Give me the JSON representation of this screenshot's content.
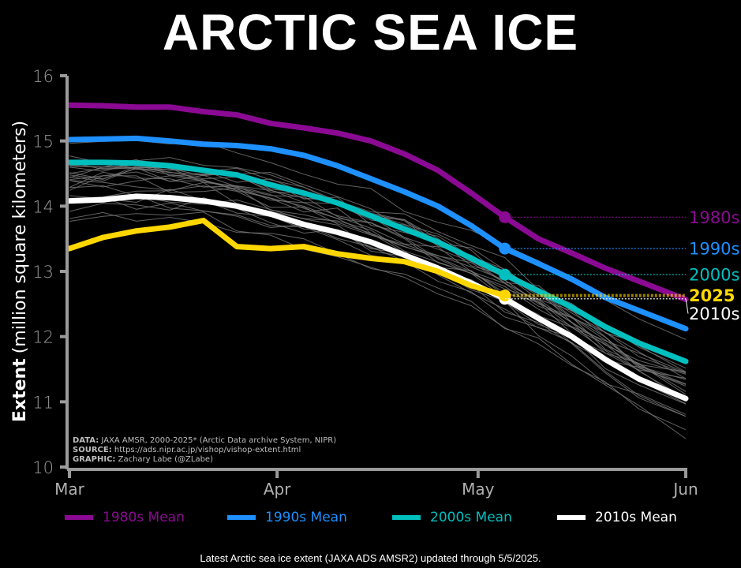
{
  "title": "ARCTIC SEA ICE",
  "footer": "Latest Arctic sea ice extent (JAXA ADS AMSR2) updated through 5/5/2025.",
  "credits": {
    "data_label": "DATA:",
    "data_text": "JAXA AMSR, 2000-2025* (Arctic Data archive System, NIPR)",
    "source_label": "SOURCE:",
    "source_text": "https://ads.nipr.ac.jp/vishop/vishop-extent.html",
    "graphic_label": "GRAPHIC:",
    "graphic_text": "Zachary Labe (@ZLabe)"
  },
  "colors": {
    "background": "#000000",
    "1980s": "#8B0A93",
    "1990s": "#1E90FF",
    "2000s": "#00BFBF",
    "2010s": "#FFFFFF",
    "2025": "#FFD700",
    "axis": "#9a9a9a",
    "years": "#8c8c8c"
  },
  "legend": [
    {
      "label": "1980s Mean",
      "key": "1980s"
    },
    {
      "label": "1990s Mean",
      "key": "1990s"
    },
    {
      "label": "2000s Mean",
      "key": "2000s"
    },
    {
      "label": "2010s Mean",
      "key": "2010s"
    }
  ],
  "chart_data": {
    "type": "line",
    "title": "ARCTIC SEA ICE",
    "xlabel": "",
    "ylabel_bold": "Extent",
    "ylabel_rest": "(million square kilometers)",
    "ylim": [
      10,
      16
    ],
    "xlim_days": [
      0,
      92
    ],
    "yticks": [
      10,
      11,
      12,
      13,
      14,
      15,
      16
    ],
    "xticks": [
      {
        "label": "Mar",
        "day": 0
      },
      {
        "label": "Apr",
        "day": 31
      },
      {
        "label": "May",
        "day": 61
      },
      {
        "label": "Jun",
        "day": 92
      }
    ],
    "grid": false,
    "legend_position": "bottom",
    "latest_day": 65,
    "x_days": [
      0,
      5,
      10,
      15,
      20,
      25,
      30,
      35,
      40,
      45,
      50,
      55,
      60,
      65,
      70,
      75,
      80,
      85,
      92
    ],
    "series": [
      {
        "name": "1980s",
        "legend": "1980s Mean",
        "end_label": "1980s",
        "values": [
          15.55,
          15.54,
          15.52,
          15.52,
          15.45,
          15.4,
          15.27,
          15.2,
          15.12,
          15.0,
          14.8,
          14.55,
          14.2,
          13.83,
          13.5,
          13.28,
          13.05,
          12.85,
          12.57
        ],
        "marker_value": 13.83
      },
      {
        "name": "1990s",
        "legend": "1990s Mean",
        "end_label": "1990s",
        "values": [
          15.02,
          15.03,
          15.04,
          15.0,
          14.95,
          14.93,
          14.88,
          14.78,
          14.62,
          14.42,
          14.22,
          14.0,
          13.7,
          13.35,
          13.12,
          12.88,
          12.6,
          12.4,
          12.12
        ],
        "marker_value": 13.35
      },
      {
        "name": "2000s",
        "legend": "2000s Mean",
        "end_label": "2000s",
        "values": [
          14.67,
          14.67,
          14.66,
          14.62,
          14.55,
          14.48,
          14.33,
          14.2,
          14.05,
          13.85,
          13.65,
          13.45,
          13.2,
          12.95,
          12.7,
          12.45,
          12.15,
          11.9,
          11.62
        ],
        "marker_value": 12.95
      },
      {
        "name": "2010s",
        "legend": "2010s Mean",
        "end_label": "2010s",
        "values": [
          14.08,
          14.1,
          14.15,
          14.13,
          14.08,
          14.0,
          13.88,
          13.72,
          13.6,
          13.45,
          13.25,
          13.05,
          12.82,
          12.58,
          12.28,
          12.0,
          11.65,
          11.35,
          11.05
        ],
        "marker_value": 12.58
      },
      {
        "name": "2025",
        "legend": "",
        "end_label": "2025",
        "values": [
          13.35,
          13.52,
          13.62,
          13.68,
          13.78,
          13.38,
          13.35,
          13.38,
          13.27,
          13.2,
          13.15,
          13.0,
          12.78,
          12.63
        ],
        "marker_value": 12.63
      }
    ],
    "individual_years_note": "thin gray lines for individual years 2000-2024"
  }
}
